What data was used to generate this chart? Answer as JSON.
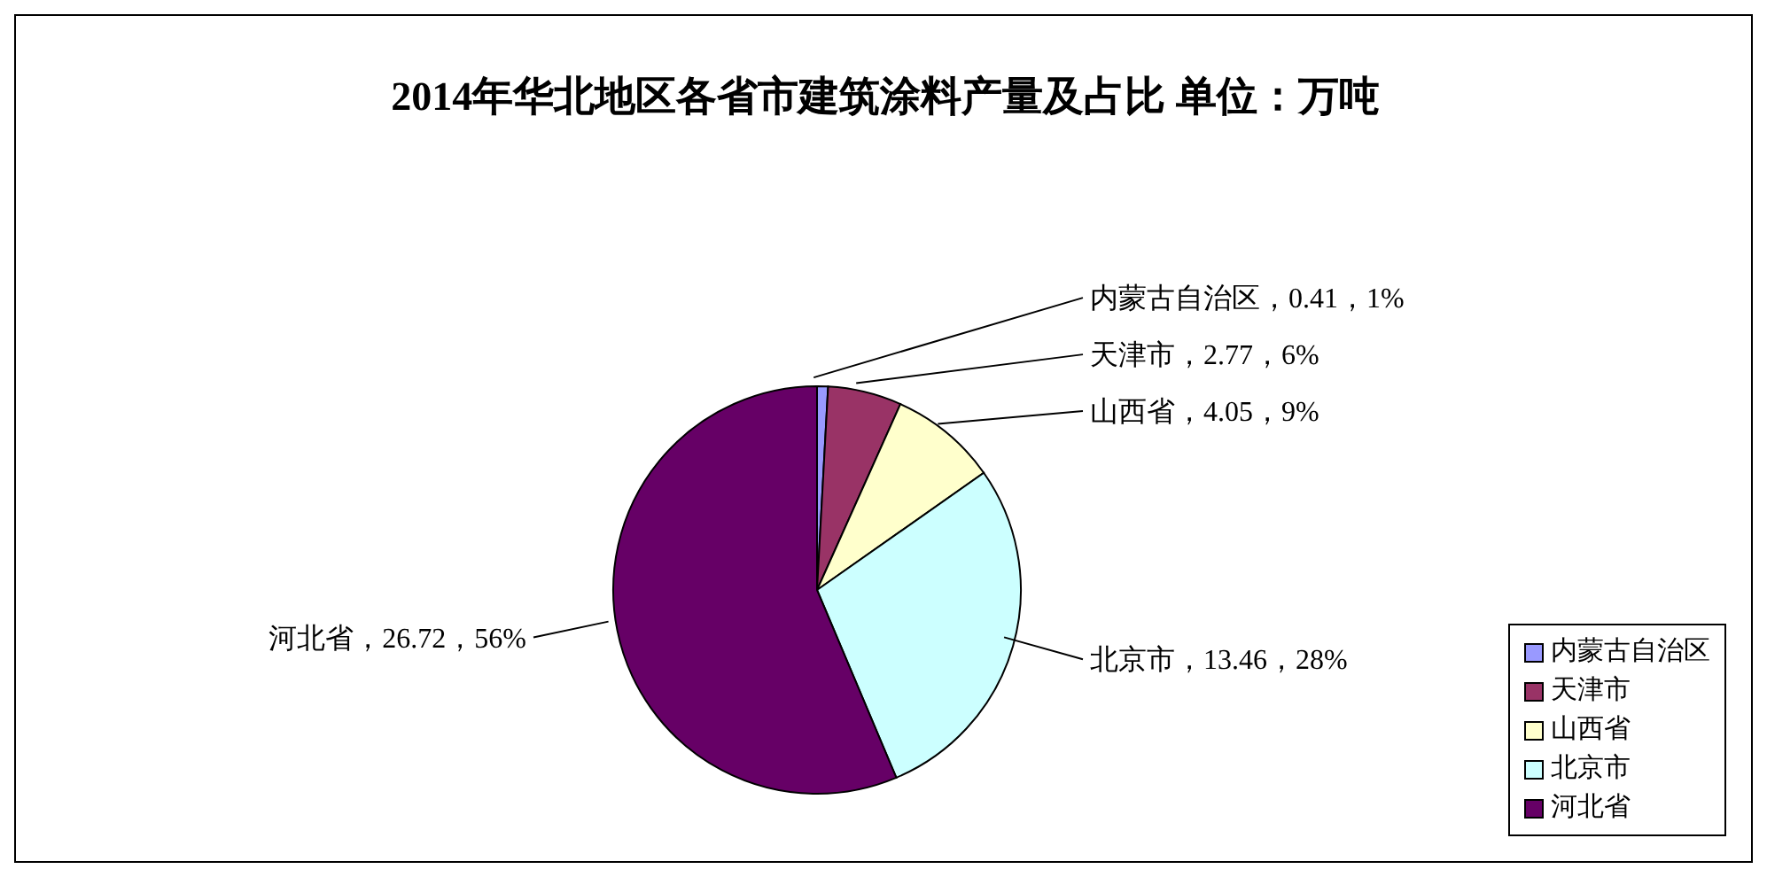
{
  "chart_data": {
    "type": "pie",
    "title": "2014年华北地区各省市建筑涂料产量及占比 单位：万吨",
    "categories": [
      "内蒙古自治区",
      "天津市",
      "山西省",
      "北京市",
      "河北省"
    ],
    "values": [
      0.41,
      2.77,
      4.05,
      13.46,
      26.72
    ],
    "colors": [
      "#9999ff",
      "#993366",
      "#ffffcc",
      "#ccffff",
      "#660066"
    ],
    "value_labels": [
      "内蒙古自治区，0.41，1%",
      "天津市，2.77，6%",
      "山西省，4.05，9%",
      "北京市，13.46，28%",
      "河北省，26.72，56%"
    ],
    "legend": "bottom right"
  }
}
